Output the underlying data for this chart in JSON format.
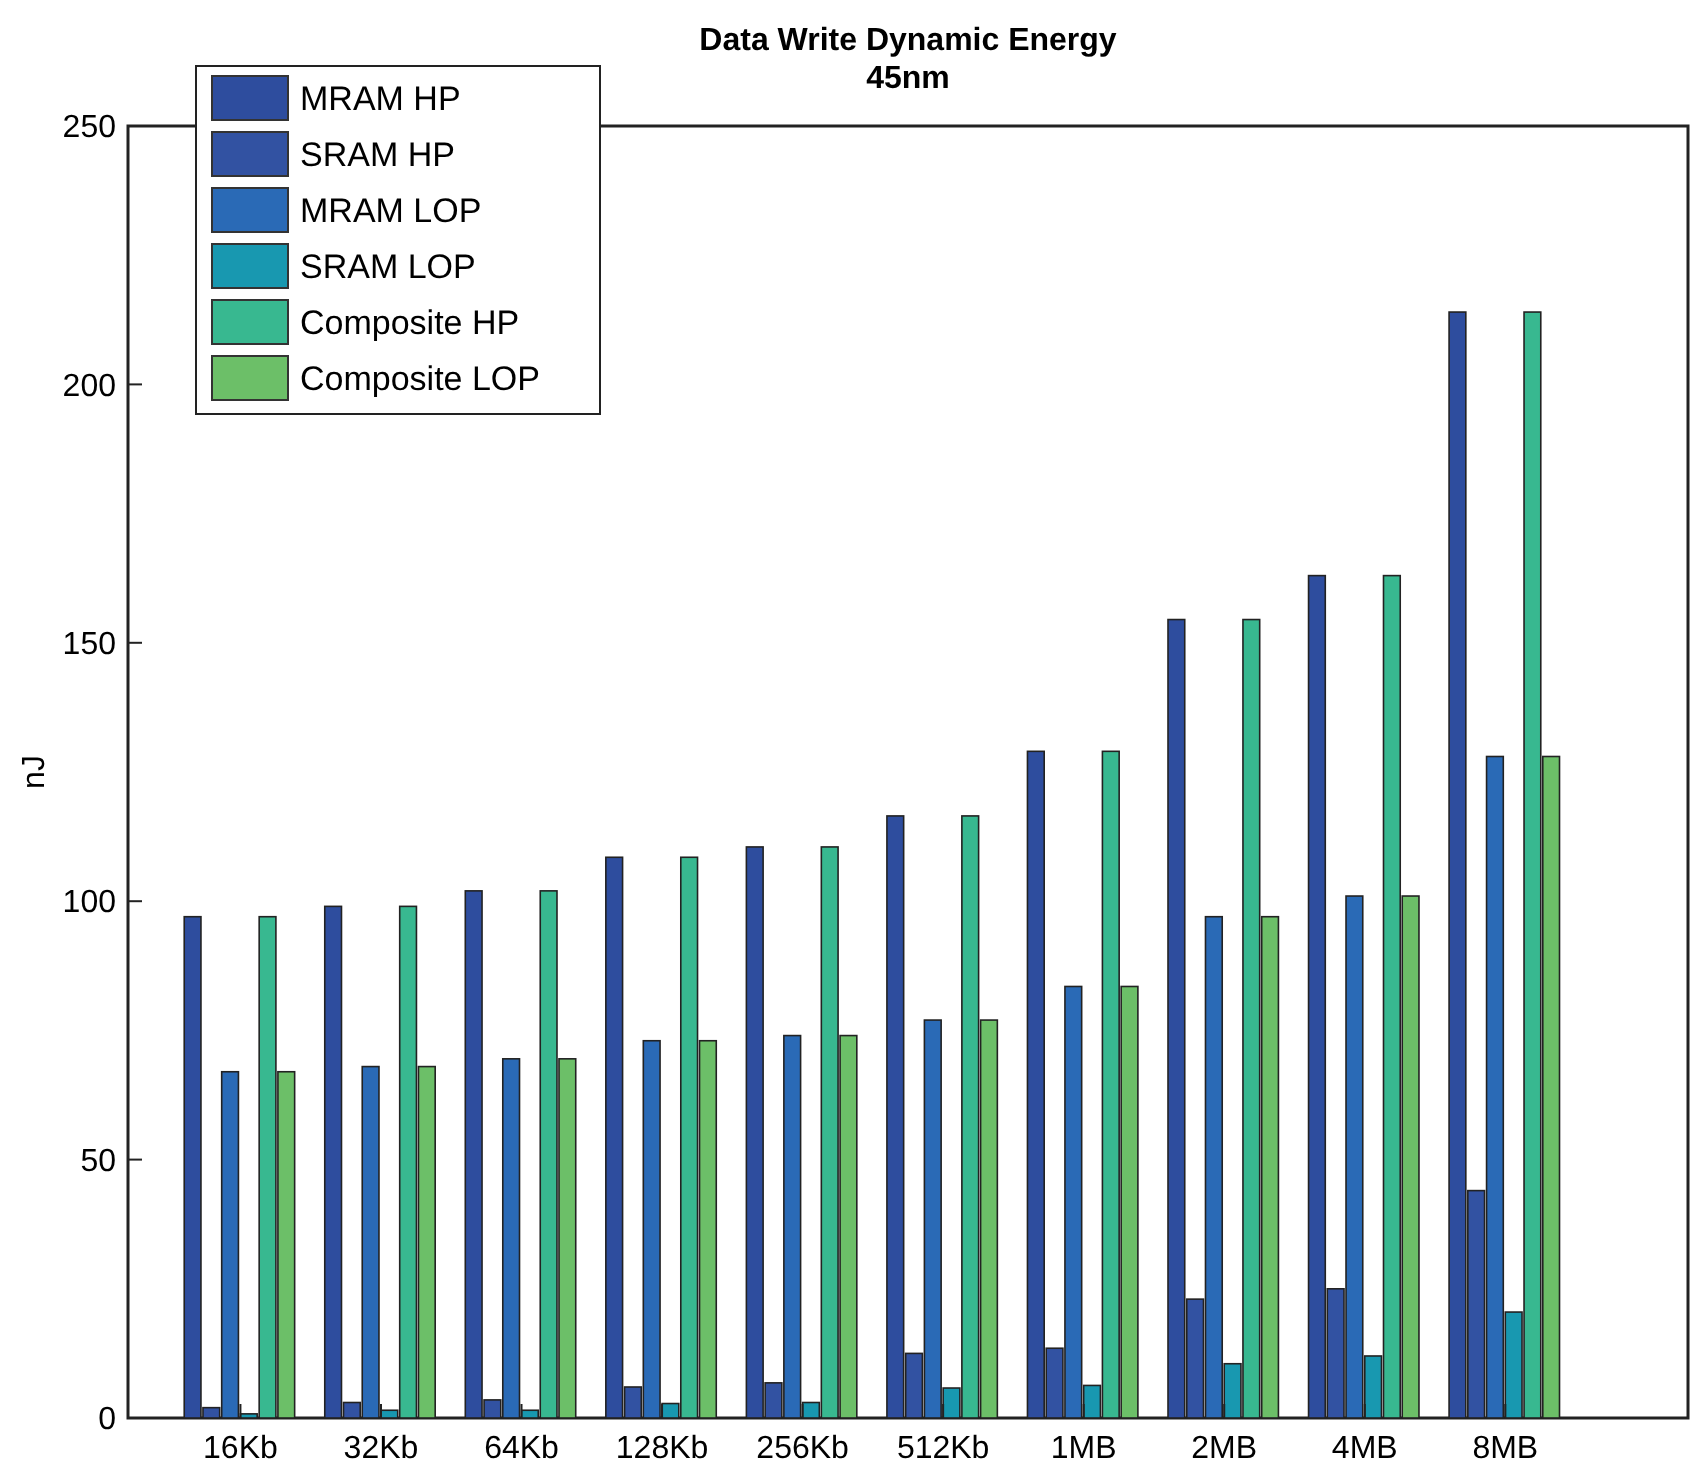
{
  "chart_data": {
    "type": "bar",
    "title": "Data Write Dynamic Energy\n45nm",
    "ylabel": "nJ",
    "categories": [
      "16Kb",
      "32Kb",
      "64Kb",
      "128Kb",
      "256Kb",
      "512Kb",
      "1MB",
      "2MB",
      "4MB",
      "8MB"
    ],
    "series": [
      {
        "name": "MRAM HP",
        "color": "#2e4d9e",
        "values": [
          97,
          99,
          102,
          108.5,
          110.5,
          116.5,
          129,
          154.5,
          163,
          214
        ]
      },
      {
        "name": "SRAM HP",
        "color": "#3252a2",
        "values": [
          2,
          3,
          3.5,
          6,
          6.8,
          12.5,
          13.5,
          23,
          25,
          44
        ]
      },
      {
        "name": "MRAM LOP",
        "color": "#2a6ab6",
        "values": [
          67,
          68,
          69.5,
          73,
          74,
          77,
          83.5,
          97,
          101,
          128
        ]
      },
      {
        "name": "SRAM LOP",
        "color": "#1898b0",
        "values": [
          0.8,
          1.5,
          1.5,
          2.8,
          3,
          5.8,
          6.3,
          10.5,
          12,
          20.5
        ]
      },
      {
        "name": "Composite HP",
        "color": "#38b890",
        "values": [
          97,
          99,
          102,
          108.5,
          110.5,
          116.5,
          129,
          154.5,
          163,
          214
        ]
      },
      {
        "name": "Composite LOP",
        "color": "#6cbf68",
        "values": [
          67,
          68,
          69.5,
          73,
          74,
          77,
          83.5,
          97,
          101,
          128
        ]
      }
    ],
    "ylim": [
      0,
      250
    ],
    "yticks": [
      0,
      50,
      100,
      150,
      200,
      250
    ],
    "grid": false,
    "legend": "top left"
  }
}
